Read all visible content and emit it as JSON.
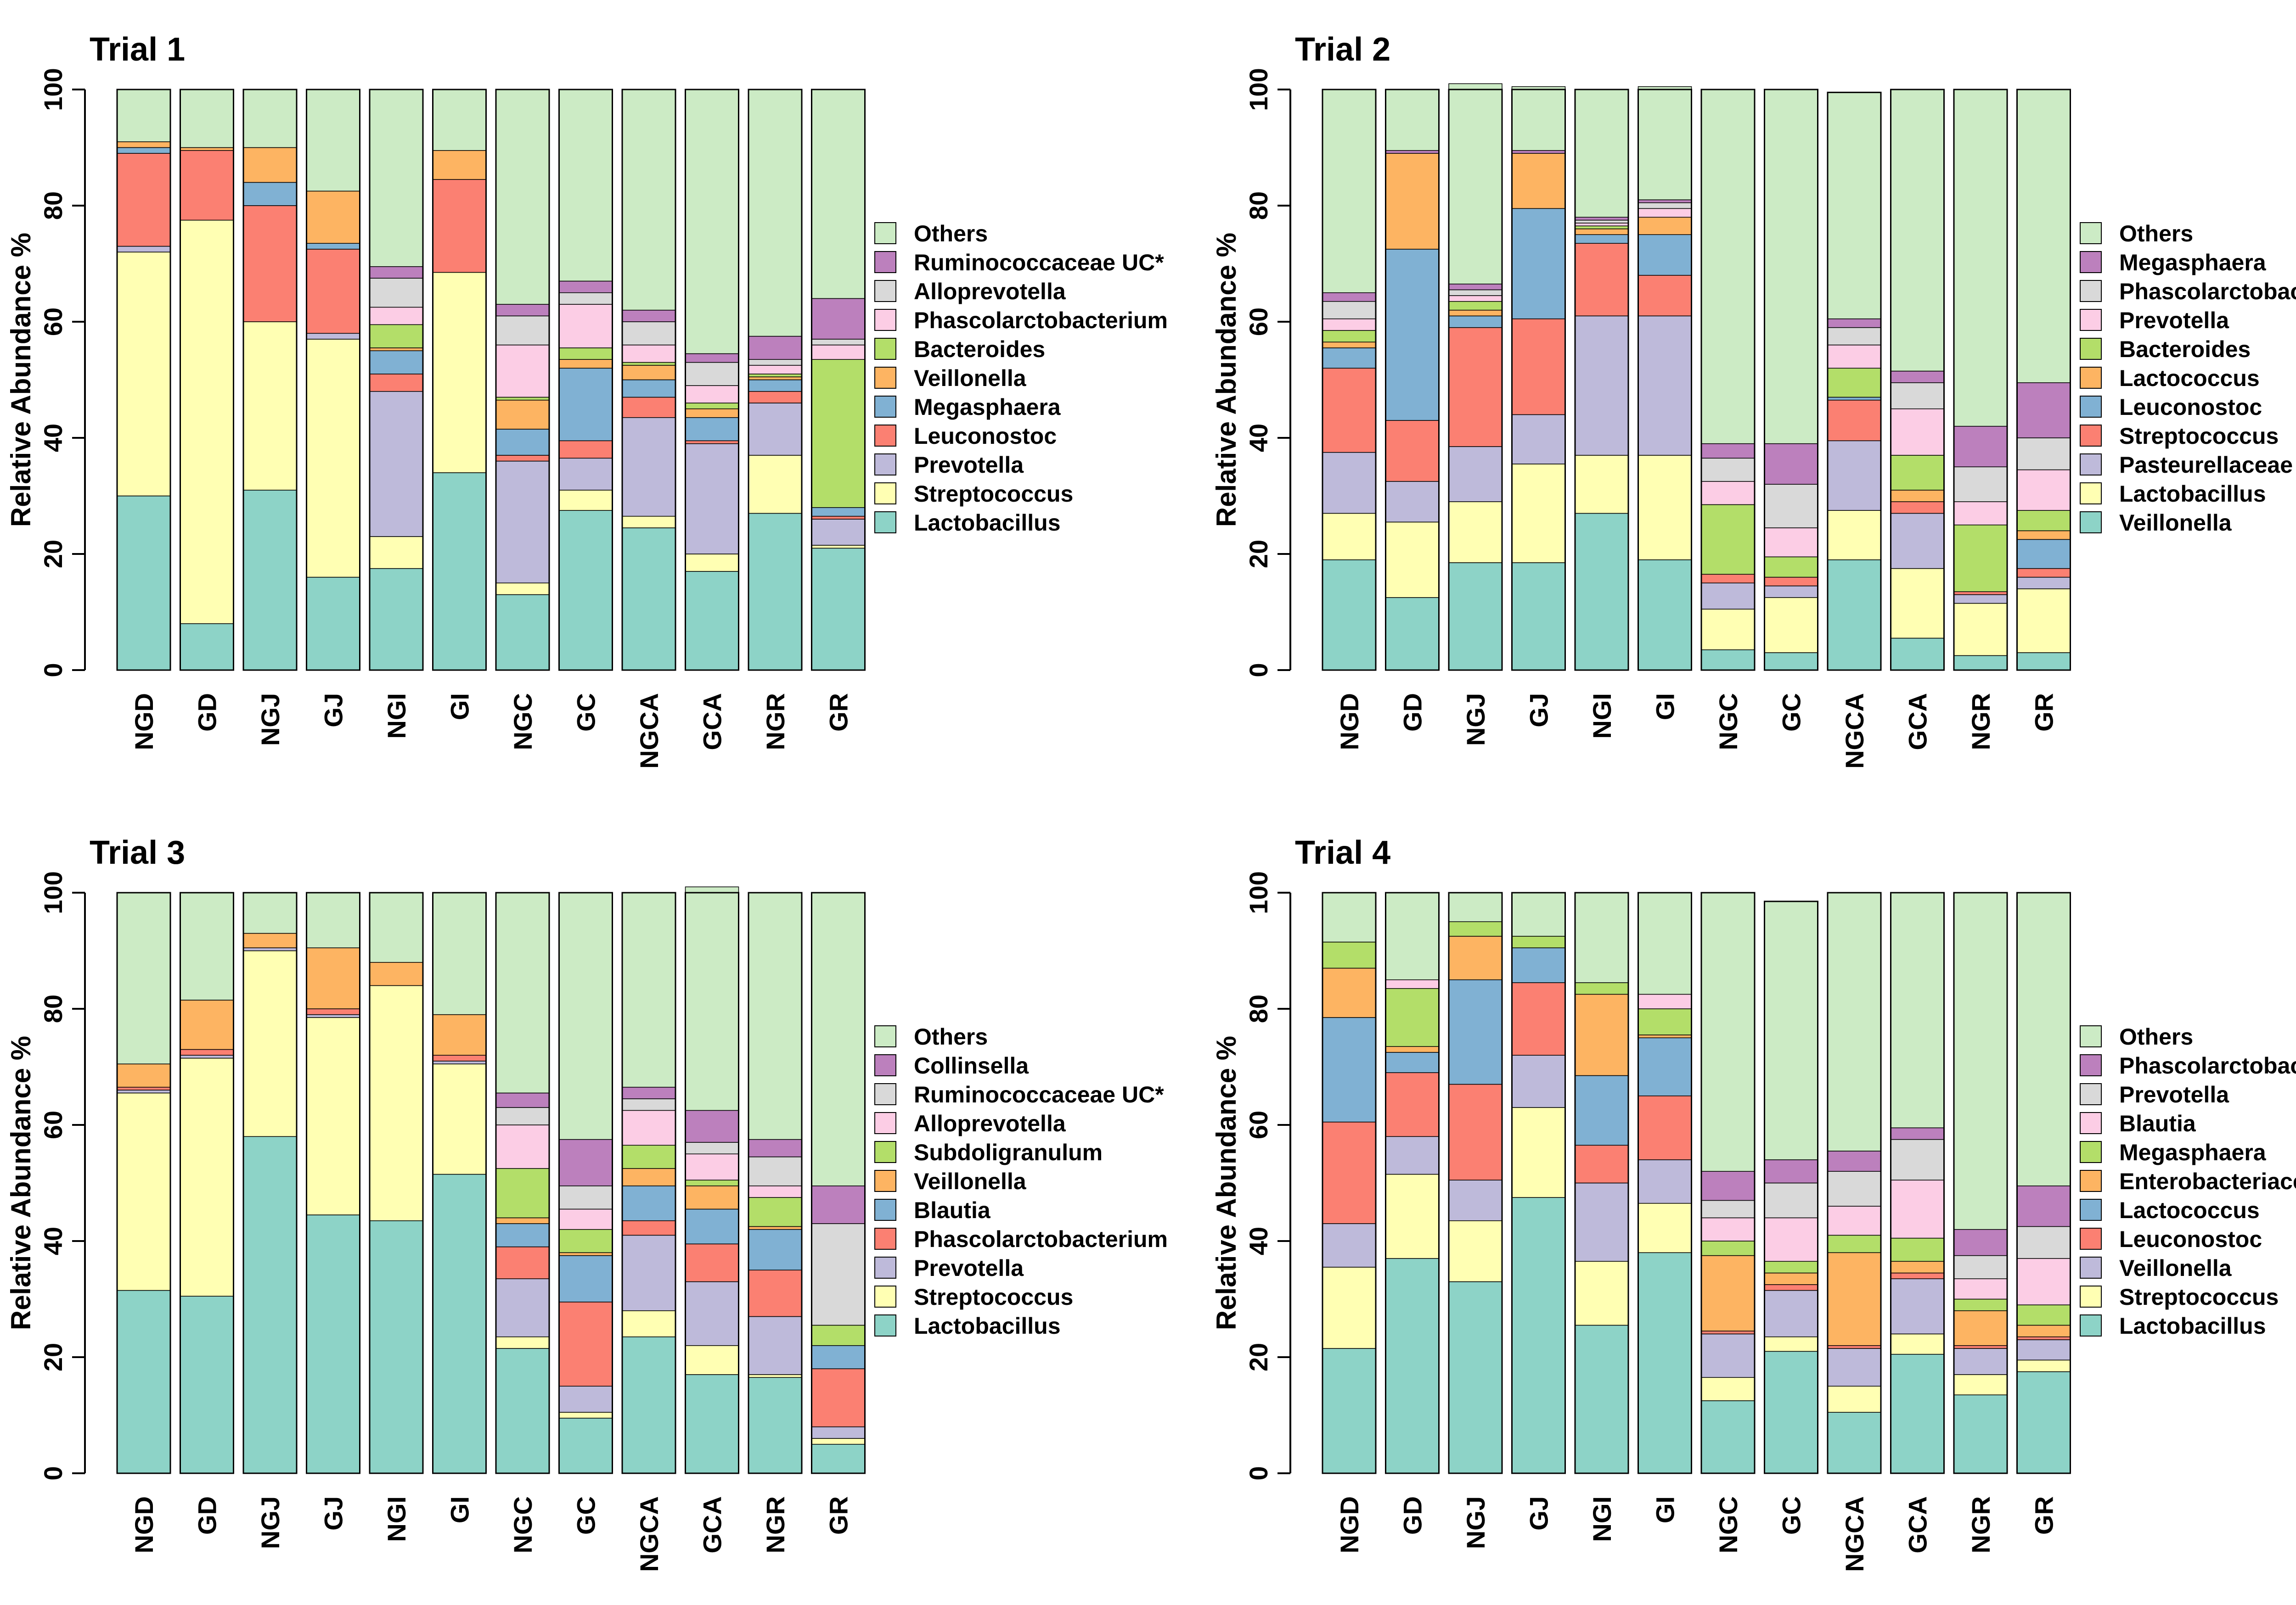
{
  "figure": {
    "y_axis_label": "Relative Abundance %"
  },
  "palette": {
    "Lactobacillus": "#8dd3c7",
    "Streptococcus": "#ffffb3",
    "Prevotella": "#bebada",
    "Leuconostoc": "#fb8072",
    "Megasphaera": "#80b1d3",
    "Veillonella": "#fdb462",
    "Bacteroides": "#b3de69",
    "Phascolarctobacterium": "#fccde5",
    "Alloprevotella": "#d9d9d9",
    "Ruminococcaceae UC*": "#bc80bd",
    "Others": "#ccebc5",
    "Pasteurellaceae UC*": "#bebada",
    "Lactococcus": "#fdb462",
    "Subdoligranulum": "#b3de69",
    "Blautia": "#80b1d3",
    "Collinsella": "#bc80bd",
    "Enterobacteriaceae UC*": "#fdb462"
  },
  "chart_data": [
    {
      "type": "bar",
      "stacked": true,
      "title": "Trial 1",
      "xlabel": "",
      "ylabel": "Relative Abundance %",
      "ylim": [
        0,
        100
      ],
      "yticks": [
        0,
        20,
        40,
        60,
        80,
        100
      ],
      "categories": [
        "NGD",
        "GD",
        "NGJ",
        "GJ",
        "NGI",
        "GI",
        "NGC",
        "GC",
        "NGCA",
        "GCA",
        "NGR",
        "GR"
      ],
      "legend": [
        "Others",
        "Ruminococcaceae UC*",
        "Alloprevotella",
        "Phascolarctobacterium",
        "Bacteroides",
        "Veillonella",
        "Megasphaera",
        "Leuconostoc",
        "Prevotella",
        "Streptococcus",
        "Lactobacillus"
      ],
      "series": [
        {
          "name": "Lactobacillus",
          "color": "#8dd3c7",
          "values": [
            30,
            8,
            31,
            16,
            17.5,
            34,
            13,
            27.5,
            24.5,
            17,
            27,
            21
          ]
        },
        {
          "name": "Streptococcus",
          "color": "#ffffb3",
          "values": [
            42,
            69.5,
            29,
            41,
            5.5,
            34.5,
            2,
            3.5,
            2,
            3,
            10,
            0.5
          ]
        },
        {
          "name": "Prevotella",
          "color": "#bebada",
          "values": [
            1,
            0,
            0,
            1,
            25,
            0,
            21,
            5.5,
            17,
            19,
            9,
            4.5
          ]
        },
        {
          "name": "Leuconostoc",
          "color": "#fb8072",
          "values": [
            16,
            12,
            20,
            14.5,
            3,
            16,
            1,
            3,
            3.5,
            0.5,
            2,
            0.5
          ]
        },
        {
          "name": "Megasphaera",
          "color": "#80b1d3",
          "values": [
            1,
            0,
            4,
            1,
            4,
            0,
            4.5,
            12.5,
            3,
            4,
            2,
            1.5
          ]
        },
        {
          "name": "Veillonella",
          "color": "#fdb462",
          "values": [
            1,
            0.5,
            6,
            9,
            0.5,
            5,
            5,
            1.5,
            2.5,
            1.5,
            0.5,
            0
          ]
        },
        {
          "name": "Bacteroides",
          "color": "#b3de69",
          "values": [
            0,
            0,
            0,
            0,
            4,
            0,
            0.5,
            2,
            0.5,
            1,
            0.5,
            25.5
          ]
        },
        {
          "name": "Phascolarctobacterium",
          "color": "#fccde5",
          "values": [
            0,
            0,
            0,
            0,
            3,
            0,
            9,
            7.5,
            3,
            3,
            1.5,
            2.5
          ]
        },
        {
          "name": "Alloprevotella",
          "color": "#d9d9d9",
          "values": [
            0,
            0,
            0,
            0,
            5,
            0,
            5,
            2,
            4,
            4,
            1,
            1
          ]
        },
        {
          "name": "Ruminococcaceae UC*",
          "color": "#bc80bd",
          "values": [
            0,
            0,
            0,
            0,
            2,
            0,
            2,
            2,
            2,
            1.5,
            4,
            7
          ]
        },
        {
          "name": "Others",
          "color": "#ccebc5",
          "values": [
            9,
            10,
            10,
            17.5,
            30.5,
            10.5,
            37,
            33,
            38,
            45.5,
            42.5,
            36
          ]
        }
      ]
    },
    {
      "type": "bar",
      "stacked": true,
      "title": "Trial 2",
      "xlabel": "",
      "ylabel": "Relative Abundance %",
      "ylim": [
        0,
        100
      ],
      "yticks": [
        0,
        20,
        40,
        60,
        80,
        100
      ],
      "categories": [
        "NGD",
        "GD",
        "NGJ",
        "GJ",
        "NGI",
        "GI",
        "NGC",
        "GC",
        "NGCA",
        "GCA",
        "NGR",
        "GR"
      ],
      "legend": [
        "Others",
        "Megasphaera",
        "Phascolarctobacterium",
        "Prevotella",
        "Bacteroides",
        "Lactococcus",
        "Leuconostoc",
        "Streptococcus",
        "Pasteurellaceae UC*",
        "Lactobacillus",
        "Veillonella"
      ],
      "series": [
        {
          "name": "Veillonella",
          "color": "#8dd3c7",
          "values": [
            19,
            12.5,
            18.5,
            18.5,
            27,
            19,
            3.5,
            3,
            19,
            5.5,
            2.5,
            3
          ]
        },
        {
          "name": "Lactobacillus",
          "color": "#ffffb3",
          "values": [
            8,
            13,
            10.5,
            17,
            10,
            18,
            7,
            9.5,
            8.5,
            12,
            9,
            11
          ]
        },
        {
          "name": "Pasteurellaceae UC*",
          "color": "#bebada",
          "values": [
            10.5,
            7,
            9.5,
            8.5,
            24,
            24,
            4.5,
            2,
            12,
            9.5,
            1.5,
            2
          ]
        },
        {
          "name": "Streptococcus",
          "color": "#fb8072",
          "values": [
            14.5,
            10.5,
            20.5,
            16.5,
            12.5,
            7,
            1.5,
            1.5,
            7,
            2,
            0.5,
            1.5
          ]
        },
        {
          "name": "Leuconostoc",
          "color": "#80b1d3",
          "values": [
            3.5,
            29.5,
            2,
            19,
            1.5,
            7,
            0,
            0,
            0.5,
            0,
            0,
            5
          ]
        },
        {
          "name": "Lactococcus",
          "color": "#fdb462",
          "values": [
            1,
            16.5,
            1,
            9.5,
            1,
            3,
            0,
            0,
            0,
            2,
            0,
            1.5
          ]
        },
        {
          "name": "Bacteroides",
          "color": "#b3de69",
          "values": [
            2,
            0,
            1.5,
            0,
            0.5,
            0,
            12,
            3.5,
            5,
            6,
            11.5,
            3.5
          ]
        },
        {
          "name": "Prevotella",
          "color": "#fccde5",
          "values": [
            2,
            0,
            1,
            0,
            0.5,
            1.5,
            4,
            5,
            4,
            8,
            4,
            7
          ]
        },
        {
          "name": "Phascolarctobacterium",
          "color": "#d9d9d9",
          "values": [
            3,
            0,
            1,
            0,
            0.5,
            1,
            4,
            7.5,
            3,
            4.5,
            6,
            5.5
          ]
        },
        {
          "name": "Megasphaera",
          "color": "#bc80bd",
          "values": [
            1.5,
            0.5,
            1,
            0.5,
            0.5,
            0.5,
            2.5,
            7,
            1.5,
            2,
            7,
            9.5
          ]
        },
        {
          "name": "Others",
          "color": "#ccebc5",
          "values": [
            35,
            10.5,
            34.5,
            11,
            22,
            19.5,
            61,
            61,
            39,
            48.5,
            58,
            50.5
          ]
        }
      ]
    },
    {
      "type": "bar",
      "stacked": true,
      "title": "Trial 3",
      "xlabel": "",
      "ylabel": "Relative Abundance %",
      "ylim": [
        0,
        100
      ],
      "yticks": [
        0,
        20,
        40,
        60,
        80,
        100
      ],
      "categories": [
        "NGD",
        "GD",
        "NGJ",
        "GJ",
        "NGI",
        "GI",
        "NGC",
        "GC",
        "NGCA",
        "GCA",
        "NGR",
        "GR"
      ],
      "legend": [
        "Others",
        "Collinsella",
        "Ruminococcaceae UC*",
        "Alloprevotella",
        "Subdoligranulum",
        "Veillonella",
        "Blautia",
        "Phascolarctobacterium",
        "Prevotella",
        "Streptococcus",
        "Lactobacillus"
      ],
      "series": [
        {
          "name": "Lactobacillus",
          "color": "#8dd3c7",
          "values": [
            31.5,
            30.5,
            58,
            44.5,
            43.5,
            51.5,
            21.5,
            9.5,
            23.5,
            17,
            16.5,
            5
          ]
        },
        {
          "name": "Streptococcus",
          "color": "#ffffb3",
          "values": [
            34,
            41,
            32,
            34,
            40.5,
            19,
            2,
            1,
            4.5,
            5,
            0.5,
            1
          ]
        },
        {
          "name": "Prevotella",
          "color": "#bebada",
          "values": [
            0.5,
            0.5,
            0.5,
            0.5,
            0,
            0.5,
            10,
            4.5,
            13,
            11,
            10,
            2
          ]
        },
        {
          "name": "Phascolarctobacterium",
          "color": "#fb8072",
          "values": [
            0.5,
            1,
            0,
            1,
            0,
            1,
            5.5,
            14.5,
            2.5,
            6.5,
            8,
            10
          ]
        },
        {
          "name": "Blautia",
          "color": "#80b1d3",
          "values": [
            0,
            0,
            0,
            0,
            0,
            0,
            4,
            8,
            6,
            6,
            7,
            4
          ]
        },
        {
          "name": "Veillonella",
          "color": "#fdb462",
          "values": [
            4,
            8.5,
            2.5,
            10.5,
            4,
            7,
            1,
            0.5,
            3,
            4,
            0.5,
            0
          ]
        },
        {
          "name": "Subdoligranulum",
          "color": "#b3de69",
          "values": [
            0,
            0,
            0,
            0,
            0,
            0,
            8.5,
            4,
            4,
            1,
            5,
            3.5
          ]
        },
        {
          "name": "Alloprevotella",
          "color": "#fccde5",
          "values": [
            0,
            0,
            0,
            0,
            0,
            0,
            7.5,
            3.5,
            6,
            4.5,
            2,
            0
          ]
        },
        {
          "name": "Ruminococcaceae UC*",
          "color": "#d9d9d9",
          "values": [
            0,
            0,
            0,
            0,
            0,
            0,
            3,
            4,
            2,
            2,
            5,
            17.5
          ]
        },
        {
          "name": "Collinsella",
          "color": "#bc80bd",
          "values": [
            0,
            0,
            0,
            0,
            0,
            0,
            2.5,
            8,
            2,
            5.5,
            3,
            6.5
          ]
        },
        {
          "name": "Others",
          "color": "#ccebc5",
          "values": [
            29.5,
            18.5,
            7,
            9.5,
            12,
            21,
            34.5,
            42.5,
            33.5,
            38.5,
            42.5,
            50.5
          ]
        }
      ]
    },
    {
      "type": "bar",
      "stacked": true,
      "title": "Trial 4",
      "xlabel": "",
      "ylabel": "Relative Abundance %",
      "ylim": [
        0,
        100
      ],
      "yticks": [
        0,
        20,
        40,
        60,
        80,
        100
      ],
      "categories": [
        "NGD",
        "GD",
        "NGJ",
        "GJ",
        "NGI",
        "GI",
        "NGC",
        "GC",
        "NGCA",
        "GCA",
        "NGR",
        "GR"
      ],
      "legend": [
        "Others",
        "Phascolarctobacterium",
        "Prevotella",
        "Blautia",
        "Megasphaera",
        "Enterobacteriaceae UC*",
        "Lactococcus",
        "Leuconostoc",
        "Veillonella",
        "Streptococcus",
        "Lactobacillus"
      ],
      "series": [
        {
          "name": "Lactobacillus",
          "color": "#8dd3c7",
          "values": [
            21.5,
            37,
            33,
            47.5,
            25.5,
            38,
            12.5,
            21,
            10.5,
            20.5,
            13.5,
            17.5
          ]
        },
        {
          "name": "Streptococcus",
          "color": "#ffffb3",
          "values": [
            14,
            14.5,
            10.5,
            15.5,
            11,
            8.5,
            4,
            2.5,
            4.5,
            3.5,
            3.5,
            2
          ]
        },
        {
          "name": "Veillonella",
          "color": "#bebada",
          "values": [
            7.5,
            6.5,
            7,
            9,
            13.5,
            7.5,
            7.5,
            8,
            6.5,
            9.5,
            4.5,
            3.5
          ]
        },
        {
          "name": "Leuconostoc",
          "color": "#fb8072",
          "values": [
            17.5,
            11,
            16.5,
            12.5,
            6.5,
            11,
            0.5,
            1,
            0.5,
            1,
            0.5,
            0.5
          ]
        },
        {
          "name": "Lactococcus",
          "color": "#80b1d3",
          "values": [
            18,
            3.5,
            18,
            6,
            12,
            10,
            0,
            0,
            0,
            0,
            0,
            0
          ]
        },
        {
          "name": "Enterobacteriaceae UC*",
          "color": "#fdb462",
          "values": [
            8.5,
            1,
            7.5,
            0,
            14,
            0.5,
            13,
            2,
            16,
            2,
            6,
            2
          ]
        },
        {
          "name": "Megasphaera",
          "color": "#b3de69",
          "values": [
            4.5,
            10,
            2.5,
            2,
            2,
            4.5,
            2.5,
            2,
            3,
            4,
            2,
            3.5
          ]
        },
        {
          "name": "Blautia",
          "color": "#fccde5",
          "values": [
            0,
            1.5,
            0,
            0,
            0,
            2.5,
            4,
            7.5,
            5,
            10,
            3.5,
            8
          ]
        },
        {
          "name": "Prevotella",
          "color": "#d9d9d9",
          "values": [
            0,
            0,
            0,
            0,
            0,
            0,
            3,
            6,
            6,
            7,
            4,
            5.5
          ]
        },
        {
          "name": "Phascolarctobacterium",
          "color": "#bc80bd",
          "values": [
            0,
            0,
            0,
            0,
            0,
            0,
            5,
            4,
            3.5,
            2,
            4.5,
            7
          ]
        },
        {
          "name": "Others",
          "color": "#ccebc5",
          "values": [
            8.5,
            15,
            5,
            7.5,
            15.5,
            17.5,
            48,
            44.5,
            44.5,
            40.5,
            58,
            50.5
          ]
        }
      ]
    }
  ]
}
